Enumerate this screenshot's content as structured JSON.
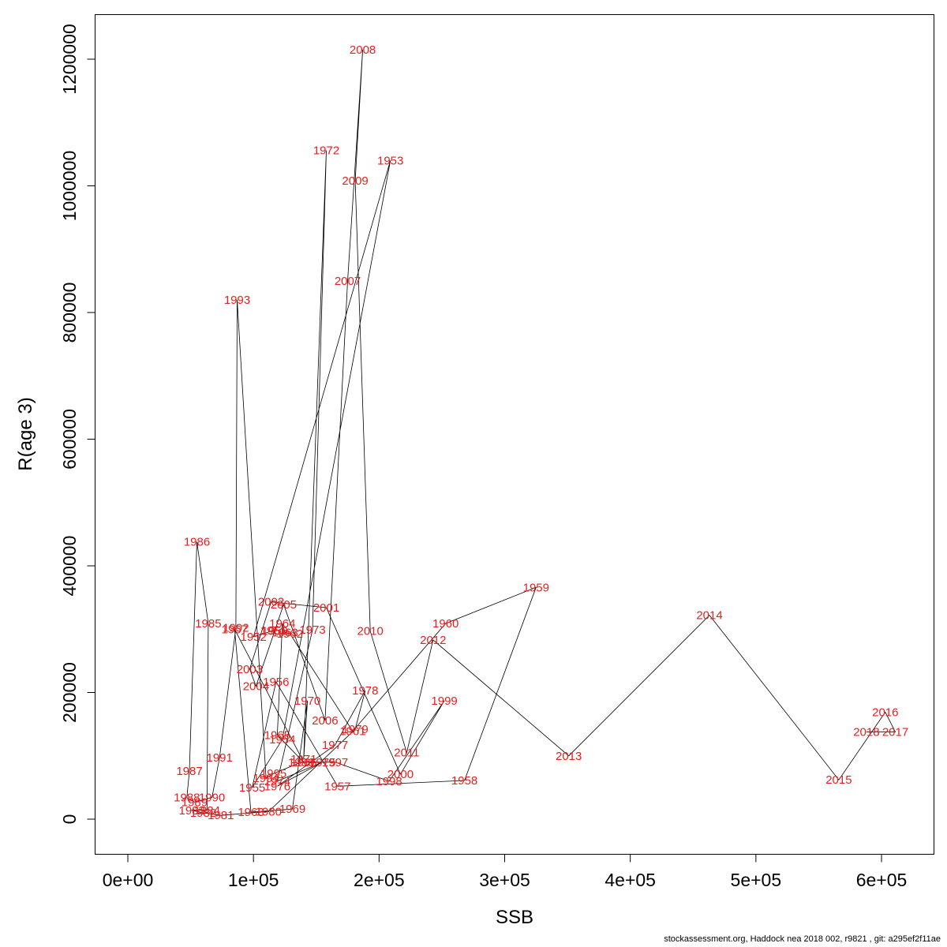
{
  "footer": {
    "text": "stockassessment.org, Haddock nea 2018 002, r9821 , git: a295ef2f11ae"
  },
  "chart_data": {
    "type": "scatter",
    "title": "",
    "xlabel": "SSB",
    "ylabel": "R(age 3)",
    "xlim": [
      0,
      640000
    ],
    "ylim": [
      0,
      1270000
    ],
    "grid": false,
    "legend": "none",
    "point_label_color": "#e62020",
    "line_color": "#000000",
    "x_ticks": {
      "values": [
        0,
        100000,
        200000,
        300000,
        400000,
        500000,
        600000
      ],
      "labels": [
        "0e+00",
        "1e+05",
        "2e+05",
        "3e+05",
        "4e+05",
        "5e+05",
        "6e+05"
      ]
    },
    "y_ticks": {
      "values": [
        0,
        200000,
        400000,
        600000,
        800000,
        1000000,
        1200000
      ],
      "labels": [
        "0",
        "200000",
        "400000",
        "600000",
        "800000",
        "1000000",
        "1200000"
      ]
    },
    "points": [
      {
        "year": 1950,
        "ssb": 117000,
        "rec": 297000
      },
      {
        "year": 1951,
        "ssb": 116000,
        "rec": 298000
      },
      {
        "year": 1952,
        "ssb": 100000,
        "rec": 288000
      },
      {
        "year": 1953,
        "ssb": 209000,
        "rec": 1040000
      },
      {
        "year": 1954,
        "ssb": 123000,
        "rec": 126000
      },
      {
        "year": 1955,
        "ssb": 99000,
        "rec": 50000
      },
      {
        "year": 1956,
        "ssb": 118000,
        "rec": 217000
      },
      {
        "year": 1957,
        "ssb": 167000,
        "rec": 52000
      },
      {
        "year": 1958,
        "ssb": 268000,
        "rec": 61000
      },
      {
        "year": 1959,
        "ssb": 325000,
        "rec": 366000
      },
      {
        "year": 1960,
        "ssb": 253000,
        "rec": 309000
      },
      {
        "year": 1961,
        "ssb": 179000,
        "rec": 139000
      },
      {
        "year": 1962,
        "ssb": 129000,
        "rec": 293000
      },
      {
        "year": 1963,
        "ssb": 125000,
        "rec": 295000
      },
      {
        "year": 1964,
        "ssb": 123000,
        "rec": 309000
      },
      {
        "year": 1965,
        "ssb": 119000,
        "rec": 133000
      },
      {
        "year": 1966,
        "ssb": 140000,
        "rec": 90000
      },
      {
        "year": 1967,
        "ssb": 85000,
        "rec": 300000
      },
      {
        "year": 1968,
        "ssb": 98000,
        "rec": 11000
      },
      {
        "year": 1969,
        "ssb": 131000,
        "rec": 16000
      },
      {
        "year": 1970,
        "ssb": 143000,
        "rec": 187000
      },
      {
        "year": 1971,
        "ssb": 140000,
        "rec": 95000
      },
      {
        "year": 1972,
        "ssb": 158000,
        "rec": 1056000
      },
      {
        "year": 1973,
        "ssb": 147000,
        "rec": 299000
      },
      {
        "year": 1974,
        "ssb": 119000,
        "rec": 60000
      },
      {
        "year": 1975,
        "ssb": 155000,
        "rec": 90000
      },
      {
        "year": 1976,
        "ssb": 119000,
        "rec": 52000
      },
      {
        "year": 1977,
        "ssb": 165000,
        "rec": 117000
      },
      {
        "year": 1978,
        "ssb": 189000,
        "rec": 203000
      },
      {
        "year": 1979,
        "ssb": 181000,
        "rec": 142000
      },
      {
        "year": 1980,
        "ssb": 112000,
        "rec": 12000
      },
      {
        "year": 1981,
        "ssb": 74000,
        "rec": 6000
      },
      {
        "year": 1982,
        "ssb": 60000,
        "rec": 10000
      },
      {
        "year": 1983,
        "ssb": 51000,
        "rec": 14000
      },
      {
        "year": 1984,
        "ssb": 63000,
        "rec": 14000
      },
      {
        "year": 1985,
        "ssb": 64000,
        "rec": 309000
      },
      {
        "year": 1986,
        "ssb": 55000,
        "rec": 438000
      },
      {
        "year": 1987,
        "ssb": 49000,
        "rec": 76000
      },
      {
        "year": 1988,
        "ssb": 47000,
        "rec": 34000
      },
      {
        "year": 1989,
        "ssb": 53000,
        "rec": 27000
      },
      {
        "year": 1990,
        "ssb": 67000,
        "rec": 34000
      },
      {
        "year": 1991,
        "ssb": 73000,
        "rec": 97000
      },
      {
        "year": 1992,
        "ssb": 86000,
        "rec": 302000
      },
      {
        "year": 1993,
        "ssb": 87000,
        "rec": 820000
      },
      {
        "year": 1994,
        "ssb": 110000,
        "rec": 65000
      },
      {
        "year": 1995,
        "ssb": 116000,
        "rec": 72000
      },
      {
        "year": 1996,
        "ssb": 138000,
        "rec": 90000
      },
      {
        "year": 1997,
        "ssb": 165000,
        "rec": 90000
      },
      {
        "year": 1998,
        "ssb": 208000,
        "rec": 60000
      },
      {
        "year": 1999,
        "ssb": 252000,
        "rec": 187000
      },
      {
        "year": 2000,
        "ssb": 217000,
        "rec": 71000
      },
      {
        "year": 2001,
        "ssb": 158000,
        "rec": 334000
      },
      {
        "year": 2002,
        "ssb": 114000,
        "rec": 343000
      },
      {
        "year": 2003,
        "ssb": 97000,
        "rec": 237000
      },
      {
        "year": 2004,
        "ssb": 102000,
        "rec": 210000
      },
      {
        "year": 2005,
        "ssb": 124000,
        "rec": 339000
      },
      {
        "year": 2006,
        "ssb": 157000,
        "rec": 156000
      },
      {
        "year": 2007,
        "ssb": 175000,
        "rec": 850000
      },
      {
        "year": 2008,
        "ssb": 187000,
        "rec": 1215000
      },
      {
        "year": 2009,
        "ssb": 181000,
        "rec": 1008000
      },
      {
        "year": 2010,
        "ssb": 193000,
        "rec": 297000
      },
      {
        "year": 2011,
        "ssb": 222000,
        "rec": 105000
      },
      {
        "year": 2012,
        "ssb": 243000,
        "rec": 283000
      },
      {
        "year": 2013,
        "ssb": 351000,
        "rec": 100000
      },
      {
        "year": 2014,
        "ssb": 463000,
        "rec": 322000
      },
      {
        "year": 2015,
        "ssb": 566000,
        "rec": 62000
      },
      {
        "year": 2016,
        "ssb": 603000,
        "rec": 169000
      },
      {
        "year": 2017,
        "ssb": 611000,
        "rec": 138000
      },
      {
        "year": 2018,
        "ssb": 588000,
        "rec": 138000
      }
    ]
  }
}
